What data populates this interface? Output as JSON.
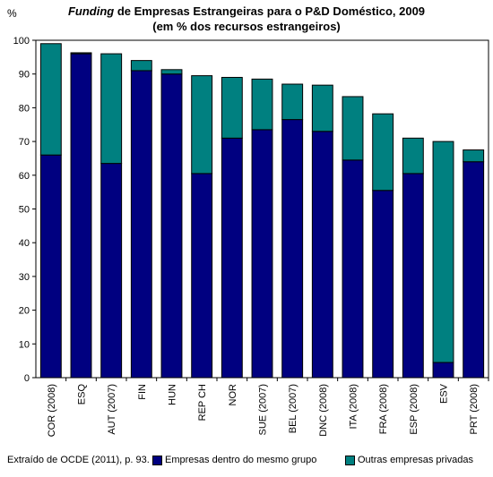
{
  "chart_data": {
    "type": "bar",
    "stacked": true,
    "title_italic": "Funding",
    "title_rest": " de Empresas Estrangeiras para o P&D Doméstico, 2009",
    "subtitle": "(em % dos recursos estrangeiros)",
    "ylabel": "%",
    "ylim": [
      0,
      100
    ],
    "yticks": [
      0,
      10,
      20,
      30,
      40,
      50,
      60,
      70,
      80,
      90,
      100
    ],
    "categories": [
      "COR (2008)",
      "ESQ",
      "AUT (2007)",
      "FIN",
      "HUN",
      "REP CH",
      "NOR",
      "SUE (2007)",
      "BEL (2007)",
      "DNC (2008)",
      "ITA (2008)",
      "FRA (2008)",
      "ESP (2008)",
      "ESV",
      "PRT (2008)"
    ],
    "series": [
      {
        "name": "Empresas dentro do mesmo grupo",
        "color": "#000080",
        "values": [
          66,
          96,
          63.5,
          91,
          90,
          60.5,
          71,
          73.5,
          76.5,
          73,
          64.5,
          55.5,
          60.5,
          4.5,
          64
        ]
      },
      {
        "name": "Outras empresas privadas",
        "color": "#008080",
        "values": [
          33,
          0.3,
          32.5,
          3,
          1.3,
          29,
          18,
          15,
          10.5,
          13.7,
          18.8,
          22.7,
          10.5,
          65.5,
          3.5
        ]
      }
    ],
    "grid": false,
    "legend_position": "bottom"
  },
  "source_note": "Extraído de OCDE (2011), p. 93."
}
